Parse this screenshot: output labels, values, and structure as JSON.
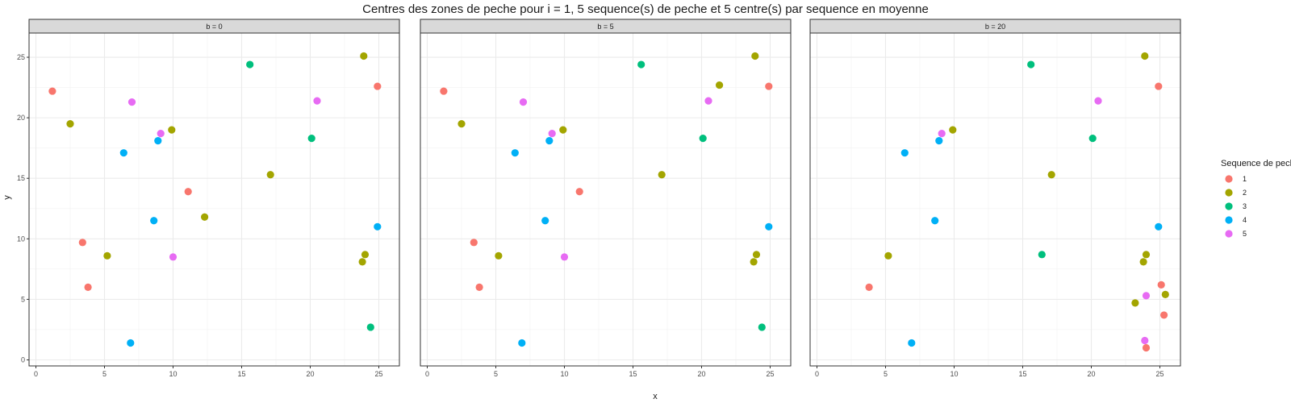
{
  "chart_data": {
    "type": "scatter",
    "title": "Centres des zones de peche pour i = 1, 5 sequence(s) de peche et 5 centre(s) par sequence en moyenne",
    "xlabel": "x",
    "ylabel": "y",
    "xlim": [
      -0.5,
      26.5
    ],
    "ylim": [
      -0.5,
      27
    ],
    "x_ticks": [
      0,
      5,
      10,
      15,
      20,
      25
    ],
    "y_ticks": [
      0,
      5,
      10,
      15,
      20,
      25
    ],
    "grid": true,
    "legend": {
      "title": "Sequence de peche",
      "placement": "right",
      "entries": [
        {
          "label": "1",
          "color": "#F8766D"
        },
        {
          "label": "2",
          "color": "#A3A500"
        },
        {
          "label": "3",
          "color": "#00BF7D"
        },
        {
          "label": "4",
          "color": "#00B0F6"
        },
        {
          "label": "5",
          "color": "#E76BF3"
        }
      ]
    },
    "facets": [
      {
        "label": "b = 0",
        "points": [
          {
            "x": 1.2,
            "y": 22.2,
            "seq": "1"
          },
          {
            "x": 3.4,
            "y": 9.7,
            "seq": "1"
          },
          {
            "x": 3.8,
            "y": 6.0,
            "seq": "1"
          },
          {
            "x": 11.1,
            "y": 13.9,
            "seq": "1"
          },
          {
            "x": 24.9,
            "y": 22.6,
            "seq": "1"
          },
          {
            "x": 2.5,
            "y": 19.5,
            "seq": "2"
          },
          {
            "x": 5.2,
            "y": 8.6,
            "seq": "2"
          },
          {
            "x": 9.9,
            "y": 19.0,
            "seq": "2"
          },
          {
            "x": 12.3,
            "y": 11.8,
            "seq": "2"
          },
          {
            "x": 17.1,
            "y": 15.3,
            "seq": "2"
          },
          {
            "x": 23.9,
            "y": 25.1,
            "seq": "2"
          },
          {
            "x": 23.8,
            "y": 8.1,
            "seq": "2"
          },
          {
            "x": 24.0,
            "y": 8.7,
            "seq": "2"
          },
          {
            "x": 15.6,
            "y": 24.4,
            "seq": "3"
          },
          {
            "x": 20.1,
            "y": 18.3,
            "seq": "3"
          },
          {
            "x": 24.4,
            "y": 2.7,
            "seq": "3"
          },
          {
            "x": 6.4,
            "y": 17.1,
            "seq": "4"
          },
          {
            "x": 6.9,
            "y": 1.4,
            "seq": "4"
          },
          {
            "x": 8.6,
            "y": 11.5,
            "seq": "4"
          },
          {
            "x": 8.9,
            "y": 18.1,
            "seq": "4"
          },
          {
            "x": 24.9,
            "y": 11.0,
            "seq": "4"
          },
          {
            "x": 7.0,
            "y": 21.3,
            "seq": "5"
          },
          {
            "x": 9.1,
            "y": 18.7,
            "seq": "5"
          },
          {
            "x": 10.0,
            "y": 8.5,
            "seq": "5"
          },
          {
            "x": 20.5,
            "y": 21.4,
            "seq": "5"
          }
        ]
      },
      {
        "label": "b = 5",
        "points": [
          {
            "x": 1.2,
            "y": 22.2,
            "seq": "1"
          },
          {
            "x": 3.4,
            "y": 9.7,
            "seq": "1"
          },
          {
            "x": 3.8,
            "y": 6.0,
            "seq": "1"
          },
          {
            "x": 11.1,
            "y": 13.9,
            "seq": "1"
          },
          {
            "x": 24.9,
            "y": 22.6,
            "seq": "1"
          },
          {
            "x": 2.5,
            "y": 19.5,
            "seq": "2"
          },
          {
            "x": 5.2,
            "y": 8.6,
            "seq": "2"
          },
          {
            "x": 9.9,
            "y": 19.0,
            "seq": "2"
          },
          {
            "x": 17.1,
            "y": 15.3,
            "seq": "2"
          },
          {
            "x": 21.3,
            "y": 22.7,
            "seq": "2"
          },
          {
            "x": 23.9,
            "y": 25.1,
            "seq": "2"
          },
          {
            "x": 23.8,
            "y": 8.1,
            "seq": "2"
          },
          {
            "x": 24.0,
            "y": 8.7,
            "seq": "2"
          },
          {
            "x": 15.6,
            "y": 24.4,
            "seq": "3"
          },
          {
            "x": 20.1,
            "y": 18.3,
            "seq": "3"
          },
          {
            "x": 24.4,
            "y": 2.7,
            "seq": "3"
          },
          {
            "x": 6.4,
            "y": 17.1,
            "seq": "4"
          },
          {
            "x": 6.9,
            "y": 1.4,
            "seq": "4"
          },
          {
            "x": 8.6,
            "y": 11.5,
            "seq": "4"
          },
          {
            "x": 8.9,
            "y": 18.1,
            "seq": "4"
          },
          {
            "x": 24.9,
            "y": 11.0,
            "seq": "4"
          },
          {
            "x": 7.0,
            "y": 21.3,
            "seq": "5"
          },
          {
            "x": 9.1,
            "y": 18.7,
            "seq": "5"
          },
          {
            "x": 10.0,
            "y": 8.5,
            "seq": "5"
          },
          {
            "x": 20.5,
            "y": 21.4,
            "seq": "5"
          }
        ]
      },
      {
        "label": "b = 20",
        "points": [
          {
            "x": 3.8,
            "y": 6.0,
            "seq": "1"
          },
          {
            "x": 24.0,
            "y": 1.0,
            "seq": "1"
          },
          {
            "x": 24.9,
            "y": 22.6,
            "seq": "1"
          },
          {
            "x": 25.1,
            "y": 6.2,
            "seq": "1"
          },
          {
            "x": 25.3,
            "y": 3.7,
            "seq": "1"
          },
          {
            "x": 5.2,
            "y": 8.6,
            "seq": "2"
          },
          {
            "x": 9.9,
            "y": 19.0,
            "seq": "2"
          },
          {
            "x": 17.1,
            "y": 15.3,
            "seq": "2"
          },
          {
            "x": 23.2,
            "y": 4.7,
            "seq": "2"
          },
          {
            "x": 23.8,
            "y": 8.1,
            "seq": "2"
          },
          {
            "x": 23.9,
            "y": 25.1,
            "seq": "2"
          },
          {
            "x": 24.0,
            "y": 8.7,
            "seq": "2"
          },
          {
            "x": 25.4,
            "y": 5.4,
            "seq": "2"
          },
          {
            "x": 15.6,
            "y": 24.4,
            "seq": "3"
          },
          {
            "x": 16.4,
            "y": 8.7,
            "seq": "3"
          },
          {
            "x": 20.1,
            "y": 18.3,
            "seq": "3"
          },
          {
            "x": 6.4,
            "y": 17.1,
            "seq": "4"
          },
          {
            "x": 6.9,
            "y": 1.4,
            "seq": "4"
          },
          {
            "x": 8.6,
            "y": 11.5,
            "seq": "4"
          },
          {
            "x": 8.9,
            "y": 18.1,
            "seq": "4"
          },
          {
            "x": 24.9,
            "y": 11.0,
            "seq": "4"
          },
          {
            "x": 9.1,
            "y": 18.7,
            "seq": "5"
          },
          {
            "x": 20.5,
            "y": 21.4,
            "seq": "5"
          },
          {
            "x": 23.9,
            "y": 1.6,
            "seq": "5"
          },
          {
            "x": 24.0,
            "y": 5.3,
            "seq": "5"
          }
        ]
      }
    ]
  }
}
